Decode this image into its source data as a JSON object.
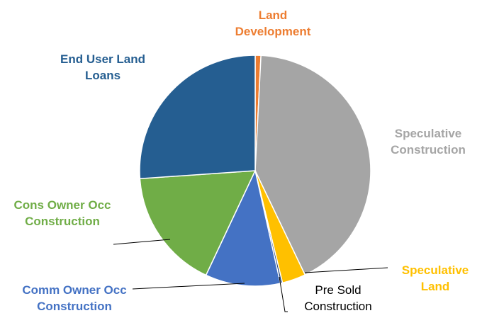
{
  "chart_data": {
    "type": "pie",
    "categories": [
      "Land Development",
      "Speculative Construction",
      "Speculative Land",
      "Pre Sold Construction",
      "Comm Owner Occ Construction",
      "Cons Owner Occ Construction",
      "End User Land Loans"
    ],
    "values": [
      0.8,
      42.1,
      3.3,
      0.3,
      10.5,
      16.9,
      26.1
    ],
    "colors": [
      "#ED7D31",
      "#A5A5A5",
      "#FFC000",
      "#264478",
      "#4472C4",
      "#70AD47",
      "#255E91"
    ],
    "label_colors": [
      "#ED7D31",
      "#A5A5A5",
      "#FFC000",
      "#000000",
      "#4472C4",
      "#70AD47",
      "#255E91"
    ]
  }
}
